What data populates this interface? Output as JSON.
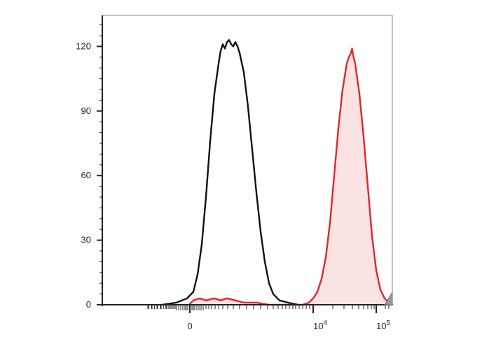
{
  "chart_data": {
    "type": "area",
    "title": "",
    "xlabel": "",
    "ylabel": "",
    "x_scale": "biexponential",
    "ylim": [
      0,
      132
    ],
    "y_ticks": [
      0,
      30,
      60,
      90,
      120
    ],
    "y_tick_labels": [
      "0",
      "30",
      "60",
      "90",
      "120"
    ],
    "x_tick_labels": [
      {
        "base": "0",
        "exp": ""
      },
      {
        "base": "10",
        "exp": "4"
      },
      {
        "base": "10",
        "exp": "5"
      }
    ],
    "grid": false,
    "colors": {
      "control": "#111111",
      "stained": "#e3262a",
      "stained_fill": "#fbe3e3",
      "axis": "#222222"
    },
    "series": [
      {
        "color": "#111111",
        "filled": false,
        "points": [
          [
            -0.15,
            0
          ],
          [
            -0.08,
            1
          ],
          [
            -0.03,
            3
          ],
          [
            0.0,
            6
          ],
          [
            0.02,
            14
          ],
          [
            0.04,
            28
          ],
          [
            0.06,
            50
          ],
          [
            0.08,
            76
          ],
          [
            0.1,
            98
          ],
          [
            0.12,
            112
          ],
          [
            0.13,
            118
          ],
          [
            0.14,
            121
          ],
          [
            0.15,
            119
          ],
          [
            0.16,
            122
          ],
          [
            0.17,
            123
          ],
          [
            0.18,
            121
          ],
          [
            0.19,
            120
          ],
          [
            0.2,
            122
          ],
          [
            0.21,
            120
          ],
          [
            0.22,
            117
          ],
          [
            0.24,
            108
          ],
          [
            0.26,
            92
          ],
          [
            0.28,
            72
          ],
          [
            0.3,
            52
          ],
          [
            0.32,
            34
          ],
          [
            0.34,
            20
          ],
          [
            0.36,
            10
          ],
          [
            0.38,
            5
          ],
          [
            0.41,
            2
          ],
          [
            0.45,
            1
          ],
          [
            0.5,
            0
          ]
        ]
      },
      {
        "color": "#e3262a",
        "filled": true,
        "points": [
          [
            -0.02,
            0
          ],
          [
            0.0,
            2
          ],
          [
            0.03,
            3
          ],
          [
            0.06,
            2
          ],
          [
            0.1,
            3
          ],
          [
            0.13,
            2
          ],
          [
            0.16,
            3
          ],
          [
            0.2,
            2
          ],
          [
            0.24,
            1
          ],
          [
            0.3,
            1
          ],
          [
            0.36,
            0
          ],
          [
            0.52,
            0
          ],
          [
            0.55,
            1
          ],
          [
            0.57,
            3
          ],
          [
            0.59,
            6
          ],
          [
            0.61,
            12
          ],
          [
            0.63,
            22
          ],
          [
            0.65,
            38
          ],
          [
            0.67,
            60
          ],
          [
            0.69,
            82
          ],
          [
            0.71,
            100
          ],
          [
            0.73,
            112
          ],
          [
            0.74,
            115
          ],
          [
            0.75,
            117
          ],
          [
            0.755,
            119
          ],
          [
            0.76,
            116
          ],
          [
            0.77,
            112
          ],
          [
            0.79,
            98
          ],
          [
            0.81,
            78
          ],
          [
            0.83,
            55
          ],
          [
            0.85,
            32
          ],
          [
            0.87,
            16
          ],
          [
            0.89,
            7
          ],
          [
            0.91,
            3
          ],
          [
            0.93,
            1
          ],
          [
            0.95,
            0
          ]
        ]
      }
    ]
  }
}
